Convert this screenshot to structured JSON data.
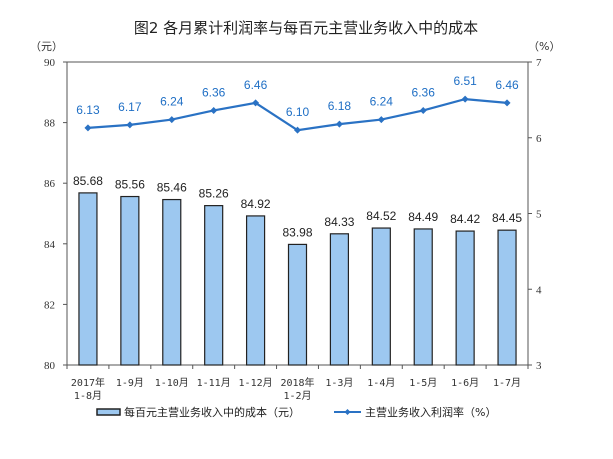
{
  "chart_data": {
    "type": "bar+line",
    "title": "图2  各月累计利润率与每百元主营业务收入中的成本",
    "left_unit": "（元）",
    "right_unit": "（%）",
    "categories": [
      [
        "2017年",
        "1-8月"
      ],
      [
        "1-9月"
      ],
      [
        "1-10月"
      ],
      [
        "1-11月"
      ],
      [
        "1-12月"
      ],
      [
        "2018年",
        "1-2月"
      ],
      [
        "1-3月"
      ],
      [
        "1-4月"
      ],
      [
        "1-5月"
      ],
      [
        "1-6月"
      ],
      [
        "1-7月"
      ]
    ],
    "left_axis": {
      "ylim": [
        80,
        90
      ],
      "ticks": [
        "80",
        "82",
        "84",
        "86",
        "88",
        "90"
      ]
    },
    "right_axis": {
      "ylim": [
        3,
        7
      ],
      "ticks": [
        "3",
        "4",
        "5",
        "6",
        "7"
      ]
    },
    "series": [
      {
        "name": "每百元主营业务收入中的成本（元）",
        "type": "bar",
        "axis": "left",
        "color": "#9dc8f0",
        "values": [
          85.68,
          85.56,
          85.46,
          85.26,
          84.92,
          83.98,
          84.33,
          84.52,
          84.49,
          84.42,
          84.45
        ]
      },
      {
        "name": "主营业务收入利润率（%）",
        "type": "line",
        "axis": "right",
        "color": "#2a72c4",
        "values": [
          6.13,
          6.17,
          6.24,
          6.36,
          6.46,
          6.1,
          6.18,
          6.24,
          6.36,
          6.51,
          6.46
        ]
      }
    ],
    "legend": "bottom"
  }
}
